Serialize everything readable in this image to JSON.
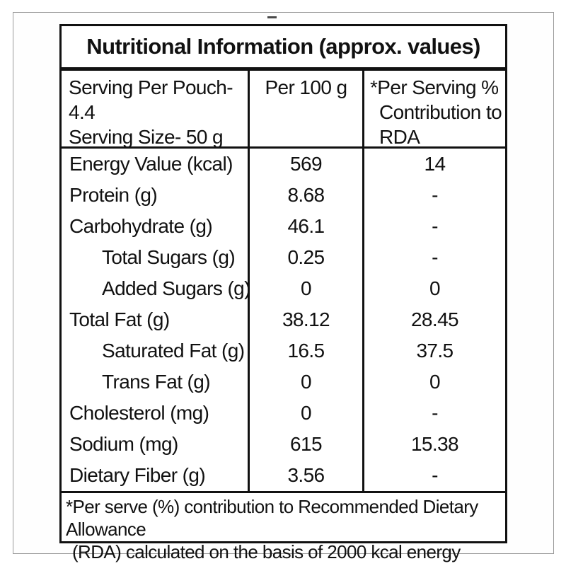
{
  "colors": {
    "border": "#111111",
    "background": "#ffffff",
    "frame_border": "#9a9a9a"
  },
  "table": {
    "title": "Nutritional Information (approx. values)",
    "header": {
      "serving_line1": "Serving Per Pouch- 4.4",
      "serving_line2": "Serving Size- 50 g",
      "per_100g": "Per 100 g",
      "rda_line1": "*Per Serving %",
      "rda_line2": "Contribution to",
      "rda_line3": "RDA"
    },
    "rows": [
      {
        "label": "Energy Value (kcal)",
        "indent": false,
        "per100g": "569",
        "rda": "14"
      },
      {
        "label": "Protein (g)",
        "indent": false,
        "per100g": "8.68",
        "rda": "-"
      },
      {
        "label": "Carbohydrate (g)",
        "indent": false,
        "per100g": "46.1",
        "rda": "-"
      },
      {
        "label": "Total Sugars (g)",
        "indent": true,
        "per100g": "0.25",
        "rda": "-"
      },
      {
        "label": "Added Sugars (g)",
        "indent": true,
        "per100g": "0",
        "rda": "0"
      },
      {
        "label": "Total Fat (g)",
        "indent": false,
        "per100g": "38.12",
        "rda": "28.45"
      },
      {
        "label": "Saturated Fat (g)",
        "indent": true,
        "per100g": "16.5",
        "rda": "37.5"
      },
      {
        "label": "Trans Fat (g)",
        "indent": true,
        "per100g": "0",
        "rda": "0"
      },
      {
        "label": "Cholesterol (mg)",
        "indent": false,
        "per100g": "0",
        "rda": "-"
      },
      {
        "label": "Sodium (mg)",
        "indent": false,
        "per100g": "615",
        "rda": "15.38"
      },
      {
        "label": "Dietary Fiber (g)",
        "indent": false,
        "per100g": "3.56",
        "rda": "-"
      }
    ],
    "footnote_line1": "*Per serve (%) contribution to Recommended Dietary Allowance",
    "footnote_line2": "(RDA) calculated on the basis of 2000 kcal energy"
  }
}
